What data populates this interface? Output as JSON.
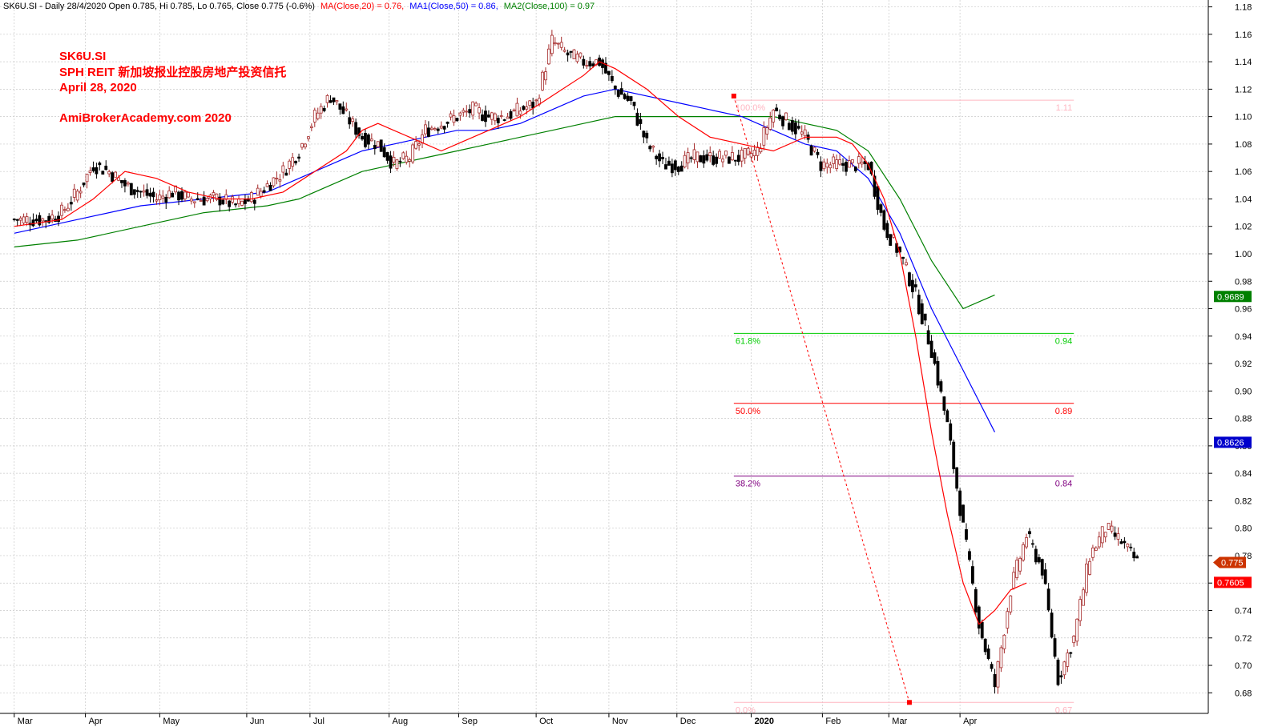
{
  "header": {
    "symbol_line": "SK6U.SI - Daily 28/4/2020 Open 0.785, Hi 0.785, Lo 0.765, Close 0.775 (-0.6%)",
    "ma20_label": "MA(Close,20) = 0.76,",
    "ma50_label": "MA1(Close,50) = 0.86,",
    "ma100_label": "MA2(Close,100) = 0.97"
  },
  "annotations": {
    "line1": "SK6U.SI",
    "line2": "SPH REIT  新加坡报业控股房地产投资信托",
    "line3": "April 28, 2020",
    "line4": "AmiBrokerAcademy.com  2020"
  },
  "colors": {
    "ma20": "#ff0000",
    "ma50": "#0000ff",
    "ma100": "#008000",
    "up_bar": "#a52a2a",
    "down_bar": "#000000",
    "fib_100": "#ffb6c1",
    "fib_618": "#00cc00",
    "fib_50": "#ff0000",
    "fib_382": "#800080",
    "fib_0": "#ffb6c1"
  },
  "chart_data": {
    "type": "candlestick",
    "ylim": [
      0.665,
      1.185
    ],
    "y_ticks": [
      "1.18",
      "1.16",
      "1.14",
      "1.12",
      "1.10",
      "1.08",
      "1.06",
      "1.04",
      "1.02",
      "1.00",
      "0.98",
      "0.96",
      "0.94",
      "0.92",
      "0.90",
      "0.88",
      "0.86",
      "0.84",
      "0.82",
      "0.80",
      "0.78",
      "0.76",
      "0.74",
      "0.72",
      "0.70",
      "0.68"
    ],
    "x_months": [
      {
        "label": "Mar",
        "x": 0.0
      },
      {
        "label": "Apr",
        "x": 4.5
      },
      {
        "label": "May",
        "x": 9.2
      },
      {
        "label": "Jun",
        "x": 14.7
      },
      {
        "label": "Jul",
        "x": 18.7
      },
      {
        "label": "Aug",
        "x": 23.7
      },
      {
        "label": "Sep",
        "x": 28.1
      },
      {
        "label": "Oct",
        "x": 33.0
      },
      {
        "label": "Nov",
        "x": 37.6
      },
      {
        "label": "Dec",
        "x": 41.9
      },
      {
        "label": "2020",
        "x": 46.6
      },
      {
        "label": "Feb",
        "x": 51.1
      },
      {
        "label": "Mar",
        "x": 55.3
      },
      {
        "label": "Apr",
        "x": 59.8
      }
    ],
    "x_range": [
      -0.9,
      75.5
    ],
    "price_path": [
      [
        0,
        1.025
      ],
      [
        1,
        1.025
      ],
      [
        2,
        1.025
      ],
      [
        3,
        1.03
      ],
      [
        4,
        1.045
      ],
      [
        5,
        1.065
      ],
      [
        6,
        1.06
      ],
      [
        7,
        1.05
      ],
      [
        8,
        1.045
      ],
      [
        9,
        1.04
      ],
      [
        10,
        1.045
      ],
      [
        11,
        1.04
      ],
      [
        12,
        1.04
      ],
      [
        13,
        1.04
      ],
      [
        14,
        1.035
      ],
      [
        15,
        1.04
      ],
      [
        16,
        1.05
      ],
      [
        17,
        1.06
      ],
      [
        18,
        1.075
      ],
      [
        19,
        1.1
      ],
      [
        20,
        1.115
      ],
      [
        21,
        1.1
      ],
      [
        22,
        1.085
      ],
      [
        23,
        1.08
      ],
      [
        24,
        1.065
      ],
      [
        25,
        1.07
      ],
      [
        26,
        1.09
      ],
      [
        27,
        1.095
      ],
      [
        28,
        1.1
      ],
      [
        29,
        1.105
      ],
      [
        30,
        1.1
      ],
      [
        31,
        1.1
      ],
      [
        32,
        1.105
      ],
      [
        33,
        1.11
      ],
      [
        34,
        1.155
      ],
      [
        35,
        1.145
      ],
      [
        36,
        1.14
      ],
      [
        37,
        1.14
      ],
      [
        38,
        1.12
      ],
      [
        39,
        1.11
      ],
      [
        40,
        1.08
      ],
      [
        41,
        1.065
      ],
      [
        42,
        1.065
      ],
      [
        43,
        1.07
      ],
      [
        44,
        1.07
      ],
      [
        45,
        1.07
      ],
      [
        46,
        1.07
      ],
      [
        47,
        1.075
      ],
      [
        48,
        1.105
      ],
      [
        49,
        1.095
      ],
      [
        50,
        1.085
      ],
      [
        51,
        1.065
      ],
      [
        52,
        1.065
      ],
      [
        53,
        1.065
      ],
      [
        54,
        1.065
      ],
      [
        55,
        1.02
      ],
      [
        56,
        1.0
      ],
      [
        57,
        0.97
      ],
      [
        58,
        0.93
      ],
      [
        59,
        0.875
      ],
      [
        60,
        0.8
      ],
      [
        61,
        0.73
      ],
      [
        62,
        0.685
      ],
      [
        63,
        0.755
      ],
      [
        64,
        0.795
      ],
      [
        65,
        0.77
      ],
      [
        66,
        0.69
      ],
      [
        67,
        0.72
      ],
      [
        68,
        0.78
      ],
      [
        69,
        0.8
      ],
      [
        70,
        0.79
      ],
      [
        71,
        0.775
      ]
    ],
    "ma20": [
      [
        0,
        1.02
      ],
      [
        3,
        1.025
      ],
      [
        5,
        1.04
      ],
      [
        7,
        1.06
      ],
      [
        9,
        1.055
      ],
      [
        11,
        1.045
      ],
      [
        13,
        1.04
      ],
      [
        15,
        1.04
      ],
      [
        17,
        1.045
      ],
      [
        19,
        1.06
      ],
      [
        21,
        1.075
      ],
      [
        22,
        1.09
      ],
      [
        23,
        1.095
      ],
      [
        24,
        1.09
      ],
      [
        26,
        1.08
      ],
      [
        27,
        1.075
      ],
      [
        28,
        1.08
      ],
      [
        30,
        1.09
      ],
      [
        32,
        1.1
      ],
      [
        34,
        1.115
      ],
      [
        36,
        1.13
      ],
      [
        37,
        1.14
      ],
      [
        38,
        1.135
      ],
      [
        40,
        1.12
      ],
      [
        42,
        1.1
      ],
      [
        44,
        1.085
      ],
      [
        46,
        1.08
      ],
      [
        48,
        1.075
      ],
      [
        50,
        1.085
      ],
      [
        52,
        1.085
      ],
      [
        53,
        1.08
      ],
      [
        54,
        1.065
      ],
      [
        55,
        1.04
      ],
      [
        56,
        1.0
      ],
      [
        57,
        0.94
      ],
      [
        58,
        0.87
      ],
      [
        59,
        0.81
      ],
      [
        60,
        0.76
      ],
      [
        61,
        0.73
      ],
      [
        62,
        0.74
      ],
      [
        63,
        0.755
      ],
      [
        64,
        0.76
      ]
    ],
    "ma50": [
      [
        0,
        1.015
      ],
      [
        4,
        1.025
      ],
      [
        8,
        1.035
      ],
      [
        12,
        1.04
      ],
      [
        16,
        1.045
      ],
      [
        18,
        1.055
      ],
      [
        20,
        1.065
      ],
      [
        22,
        1.075
      ],
      [
        24,
        1.08
      ],
      [
        26,
        1.085
      ],
      [
        28,
        1.09
      ],
      [
        30,
        1.09
      ],
      [
        32,
        1.095
      ],
      [
        34,
        1.105
      ],
      [
        36,
        1.115
      ],
      [
        38,
        1.12
      ],
      [
        40,
        1.115
      ],
      [
        42,
        1.11
      ],
      [
        44,
        1.105
      ],
      [
        46,
        1.1
      ],
      [
        48,
        1.09
      ],
      [
        50,
        1.08
      ],
      [
        52,
        1.075
      ],
      [
        54,
        1.055
      ],
      [
        56,
        1.015
      ],
      [
        58,
        0.96
      ],
      [
        60,
        0.915
      ],
      [
        62,
        0.87
      ]
    ],
    "ma100": [
      [
        0,
        1.005
      ],
      [
        4,
        1.01
      ],
      [
        8,
        1.02
      ],
      [
        12,
        1.03
      ],
      [
        16,
        1.035
      ],
      [
        18,
        1.04
      ],
      [
        20,
        1.05
      ],
      [
        22,
        1.06
      ],
      [
        24,
        1.065
      ],
      [
        26,
        1.07
      ],
      [
        28,
        1.075
      ],
      [
        30,
        1.08
      ],
      [
        32,
        1.085
      ],
      [
        34,
        1.09
      ],
      [
        36,
        1.095
      ],
      [
        38,
        1.1
      ],
      [
        40,
        1.1
      ],
      [
        42,
        1.1
      ],
      [
        44,
        1.1
      ],
      [
        46,
        1.1
      ],
      [
        48,
        1.1
      ],
      [
        50,
        1.095
      ],
      [
        52,
        1.09
      ],
      [
        54,
        1.075
      ],
      [
        56,
        1.04
      ],
      [
        58,
        0.995
      ],
      [
        60,
        0.96
      ],
      [
        62,
        0.97
      ]
    ],
    "value_boxes": [
      {
        "value": 0.9689,
        "label": "0.9689",
        "color": "#008000",
        "shape": "rect"
      },
      {
        "value": 0.8626,
        "label": "0.8626",
        "color": "#0000cc",
        "shape": "rect"
      },
      {
        "value": 0.775,
        "label": "0.775",
        "color": "#cc3300",
        "shape": "arrow"
      },
      {
        "value": 0.7605,
        "label": "0.7605",
        "color": "#ff0000",
        "shape": "rect"
      }
    ],
    "fibonacci": {
      "x_start": 45.5,
      "x_end": 67,
      "levels": [
        {
          "pct": "100.0%",
          "price_label": "1.11",
          "value": 1.112,
          "color": "#ffb6c1"
        },
        {
          "pct": "61.8%",
          "price_label": "0.94",
          "value": 0.942,
          "color": "#00cc00"
        },
        {
          "pct": "50.0%",
          "price_label": "0.89",
          "value": 0.891,
          "color": "#ff0000"
        },
        {
          "pct": "38.2%",
          "price_label": "0.84",
          "value": 0.838,
          "color": "#800080"
        },
        {
          "pct": "0.0%",
          "price_label": "0.67",
          "value": 0.673,
          "color": "#ffb6c1"
        }
      ],
      "swing_from": [
        45.5,
        1.115
      ],
      "swing_to": [
        56.6,
        0.673
      ]
    }
  }
}
